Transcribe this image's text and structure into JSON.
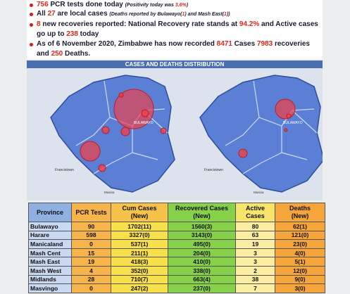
{
  "bullets": [
    [
      {
        "text": "756",
        "style": "red"
      },
      {
        "text": " PCR tests done today ",
        "style": "plain"
      },
      {
        "text": "(Positivity today was ",
        "style": "note"
      },
      {
        "text": "3.6%",
        "style": "note-red"
      },
      {
        "text": ")",
        "style": "note"
      }
    ],
    [
      {
        "text": "All ",
        "style": "plain"
      },
      {
        "text": "27",
        "style": "red"
      },
      {
        "text": " are local cases ",
        "style": "plain"
      },
      {
        "text": "(Deaths reported by Bulawayo(",
        "style": "note"
      },
      {
        "text": "1",
        "style": "note-red"
      },
      {
        "text": ") and Mash East(",
        "style": "note"
      },
      {
        "text": "1",
        "style": "note-red"
      },
      {
        "text": "))",
        "style": "note"
      }
    ],
    [
      {
        "text": "8",
        "style": "red"
      },
      {
        "text": " new recoveries reported: National Recovery rate stands at ",
        "style": "plain"
      },
      {
        "text": "94.2%",
        "style": "red"
      },
      {
        "text": " and Active cases go up to ",
        "style": "plain"
      },
      {
        "text": "238",
        "style": "red"
      },
      {
        "text": " today",
        "style": "plain"
      }
    ],
    [
      {
        "text": "As of 6 November 2020, Zimbabwe has now recorded ",
        "style": "plain"
      },
      {
        "text": "8471",
        "style": "red"
      },
      {
        "text": " Cases ",
        "style": "plain"
      },
      {
        "text": "7983",
        "style": "red"
      },
      {
        "text": " recoveries and ",
        "style": "plain"
      },
      {
        "text": "250",
        "style": "red"
      },
      {
        "text": " Deaths.",
        "style": "plain"
      }
    ]
  ],
  "banner": "CASES AND DEATHS DISTRIBUTION",
  "map_labels": [
    "BULAWAYO",
    "Francistown",
    "Musina"
  ],
  "table": {
    "header": [
      [
        "Province"
      ],
      [
        "PCR Tests"
      ],
      [
        "Cum Cases",
        "(New)"
      ],
      [
        "Recovered Cases",
        "(New)"
      ],
      [
        "Active",
        "Cases"
      ],
      [
        "Deaths",
        "(New)"
      ]
    ],
    "rows": [
      [
        "Bulawayo",
        "90",
        "1702(11)",
        "1560(3)",
        "80",
        "62(1)"
      ],
      [
        "Harare",
        "598",
        "3327(0)",
        "3143(0)",
        "63",
        "121(0)"
      ],
      [
        "Manicaland",
        "0",
        "537(1)",
        "495(0)",
        "19",
        "23(0)"
      ],
      [
        "Mash Cent",
        "15",
        "211(1)",
        "204(0)",
        "3",
        "4(0)"
      ],
      [
        "Mash East",
        "19",
        "418(3)",
        "410(0)",
        "3",
        "5(1)"
      ],
      [
        "Mash West",
        "4",
        "352(0)",
        "338(0)",
        "2",
        "12(0)"
      ],
      [
        "Midlands",
        "28",
        "710(7)",
        "663(4)",
        "38",
        "9(0)"
      ],
      [
        "Masvingo",
        "0",
        "247(2)",
        "237(0)",
        "7",
        "3(0)"
      ]
    ]
  }
}
